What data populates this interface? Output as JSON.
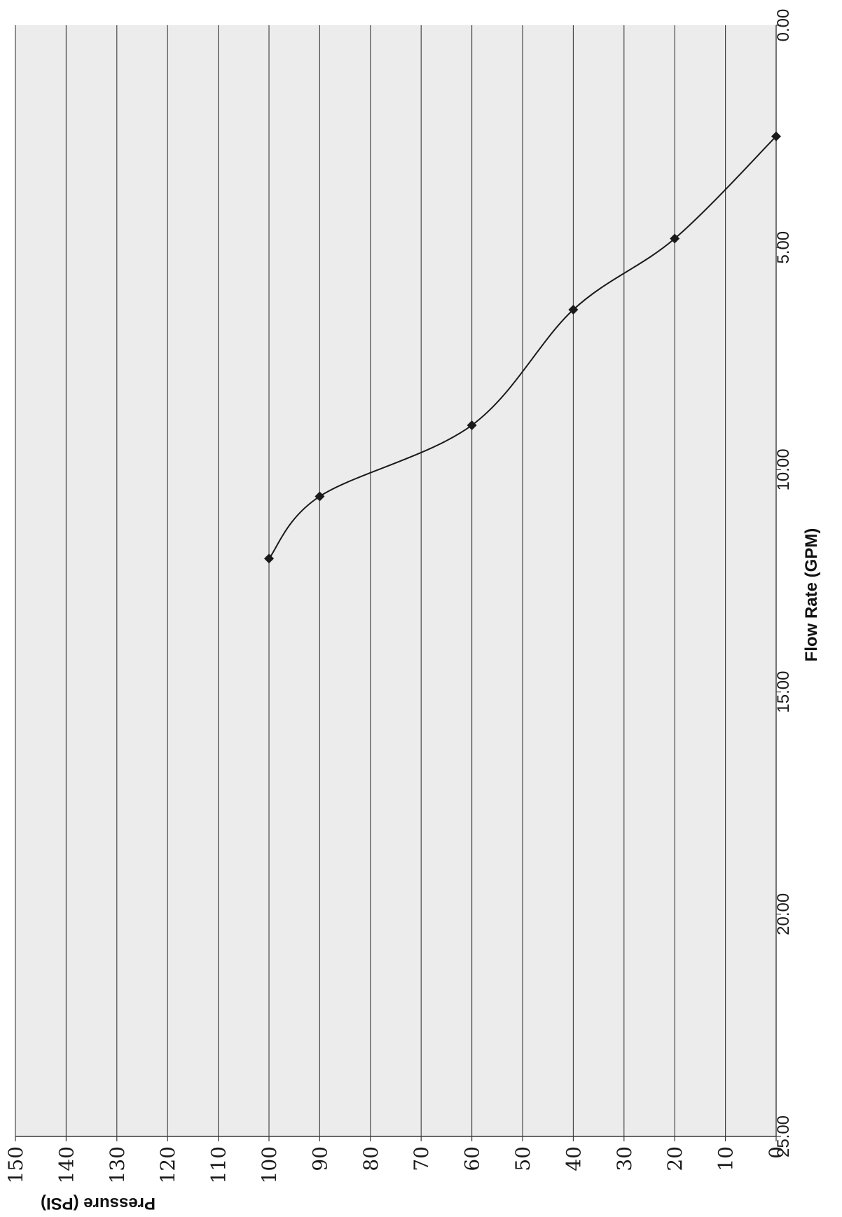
{
  "chart_data": {
    "type": "line",
    "orientation": "rotated-90",
    "x": [
      2.5,
      4.8,
      6.4,
      9.0,
      10.6,
      12.0
    ],
    "y": [
      0,
      20,
      40,
      60,
      90,
      100
    ],
    "xlabel": "Flow Rate (GPM)",
    "ylabel": "Pressure (PSI)",
    "xlim": [
      0,
      25
    ],
    "ylim": [
      0,
      150
    ],
    "x_ticks": [
      "0.00",
      "5.00",
      "10.00",
      "15.00",
      "20.00",
      "25.00"
    ],
    "y_ticks": [
      "0",
      "10",
      "20",
      "30",
      "40",
      "50",
      "60",
      "70",
      "80",
      "90",
      "100",
      "110",
      "120",
      "130",
      "140",
      "150"
    ],
    "grid": true,
    "marker": "diamond",
    "line_style": "smooth",
    "colors": {
      "plot_background": "#ececec",
      "grid": "#3a3a3a",
      "series": "#1a1a1a"
    }
  }
}
